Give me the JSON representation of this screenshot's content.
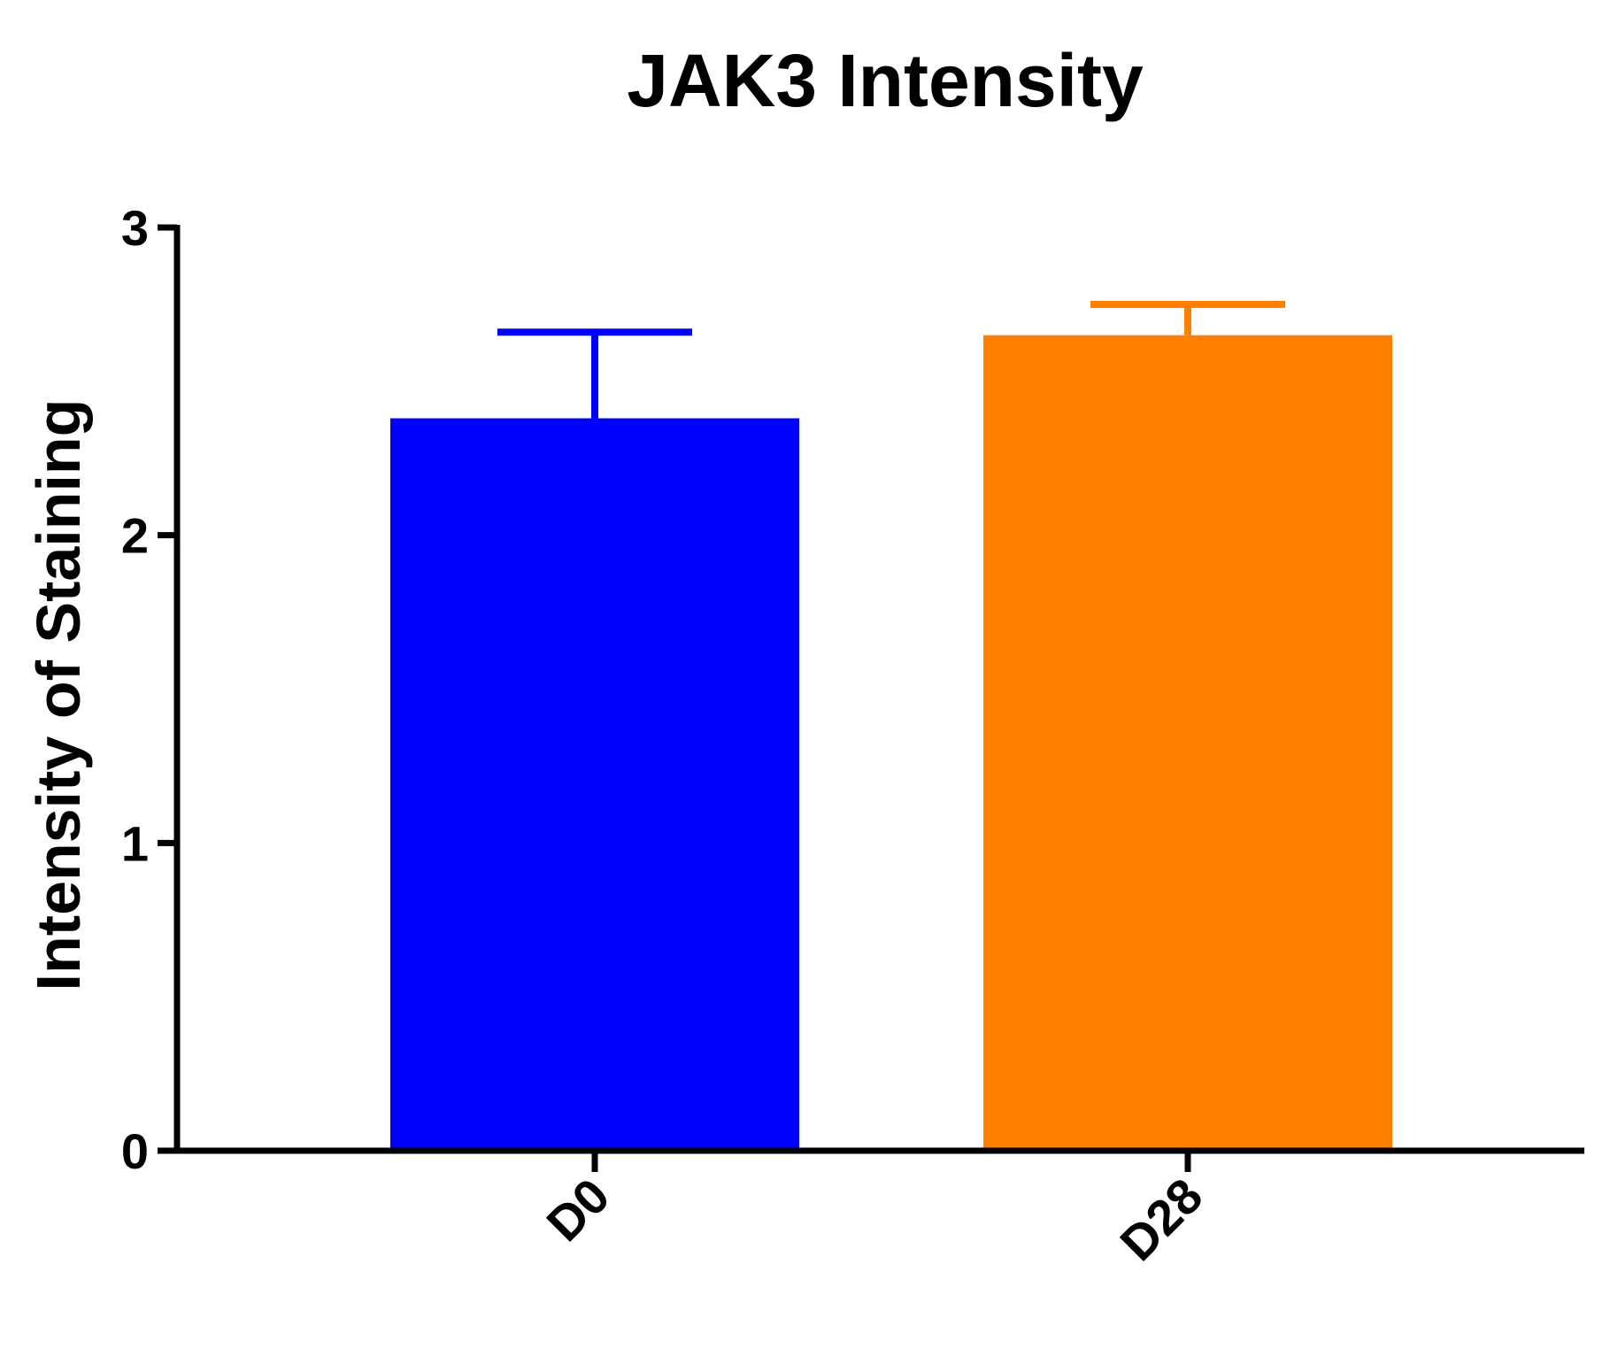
{
  "chart_data": {
    "type": "bar",
    "title": "JAK3 Intensity",
    "xlabel": "",
    "ylabel": "Intensity of Staining",
    "categories": [
      "D0",
      "D28"
    ],
    "values": [
      2.38,
      2.65
    ],
    "error_upper": [
      2.66,
      2.75
    ],
    "colors": [
      "#0000ff",
      "#ff8000"
    ],
    "ylim": [
      0,
      3
    ],
    "yticks": [
      0,
      1,
      2,
      3
    ],
    "ytick_labels": [
      "0",
      "1",
      "2",
      "3"
    ],
    "grid": false,
    "legend": "none",
    "x_tick_rotation_deg": -45
  }
}
